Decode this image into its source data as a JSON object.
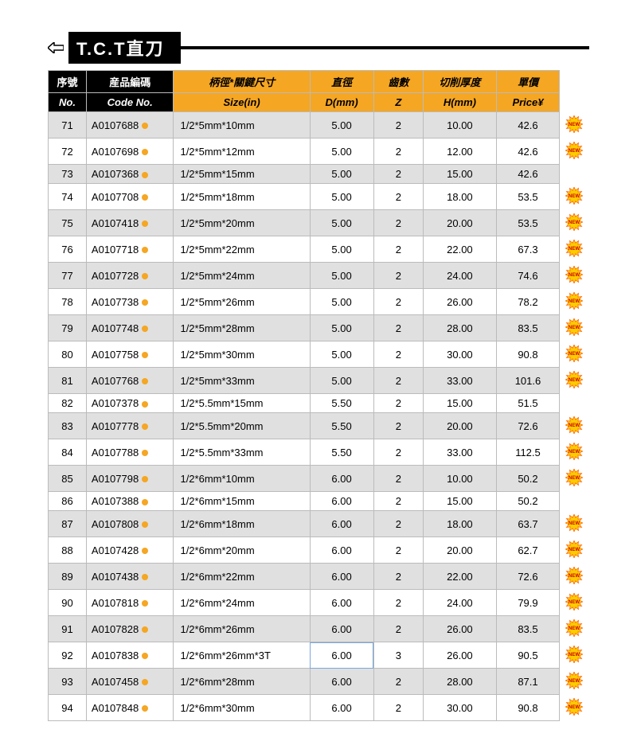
{
  "title": "T.C.T直刀",
  "headers_zh": [
    "序號",
    "産品編碼",
    "柄徑*關鍵尺寸",
    "直徑",
    "齒數",
    "切削厚度",
    "單價"
  ],
  "headers_en": [
    "No.",
    "Code No.",
    "Size(in)",
    "D(mm)",
    "Z",
    "H(mm)",
    "Price¥"
  ],
  "colors": {
    "header_black": "#000000",
    "header_yellow": "#f5a623",
    "row_alt": "#e0e0e0",
    "badge_fill": "#ffcc00",
    "badge_stroke": "#ff6600",
    "dot": "#f5a623"
  },
  "selected_cell": {
    "row_index": 21,
    "col": "d"
  },
  "rows": [
    {
      "no": "71",
      "code": "A0107688",
      "size": "1/2*5mm*10mm",
      "d": "5.00",
      "z": "2",
      "h": "10.00",
      "price": "42.6",
      "new": true
    },
    {
      "no": "72",
      "code": "A0107698",
      "size": "1/2*5mm*12mm",
      "d": "5.00",
      "z": "2",
      "h": "12.00",
      "price": "42.6",
      "new": true
    },
    {
      "no": "73",
      "code": "A0107368",
      "size": "1/2*5mm*15mm",
      "d": "5.00",
      "z": "2",
      "h": "15.00",
      "price": "42.6",
      "new": false
    },
    {
      "no": "74",
      "code": "A0107708",
      "size": "1/2*5mm*18mm",
      "d": "5.00",
      "z": "2",
      "h": "18.00",
      "price": "53.5",
      "new": true
    },
    {
      "no": "75",
      "code": "A0107418",
      "size": "1/2*5mm*20mm",
      "d": "5.00",
      "z": "2",
      "h": "20.00",
      "price": "53.5",
      "new": true
    },
    {
      "no": "76",
      "code": "A0107718",
      "size": "1/2*5mm*22mm",
      "d": "5.00",
      "z": "2",
      "h": "22.00",
      "price": "67.3",
      "new": true
    },
    {
      "no": "77",
      "code": "A0107728",
      "size": "1/2*5mm*24mm",
      "d": "5.00",
      "z": "2",
      "h": "24.00",
      "price": "74.6",
      "new": true
    },
    {
      "no": "78",
      "code": "A0107738",
      "size": "1/2*5mm*26mm",
      "d": "5.00",
      "z": "2",
      "h": "26.00",
      "price": "78.2",
      "new": true
    },
    {
      "no": "79",
      "code": "A0107748",
      "size": "1/2*5mm*28mm",
      "d": "5.00",
      "z": "2",
      "h": "28.00",
      "price": "83.5",
      "new": true
    },
    {
      "no": "80",
      "code": "A0107758",
      "size": "1/2*5mm*30mm",
      "d": "5.00",
      "z": "2",
      "h": "30.00",
      "price": "90.8",
      "new": true
    },
    {
      "no": "81",
      "code": "A0107768",
      "size": "1/2*5mm*33mm",
      "d": "5.00",
      "z": "2",
      "h": "33.00",
      "price": "101.6",
      "new": true
    },
    {
      "no": "82",
      "code": "A0107378",
      "size": "1/2*5.5mm*15mm",
      "d": "5.50",
      "z": "2",
      "h": "15.00",
      "price": "51.5",
      "new": false
    },
    {
      "no": "83",
      "code": "A0107778",
      "size": "1/2*5.5mm*20mm",
      "d": "5.50",
      "z": "2",
      "h": "20.00",
      "price": "72.6",
      "new": true
    },
    {
      "no": "84",
      "code": "A0107788",
      "size": "1/2*5.5mm*33mm",
      "d": "5.50",
      "z": "2",
      "h": "33.00",
      "price": "112.5",
      "new": true
    },
    {
      "no": "85",
      "code": "A0107798",
      "size": "1/2*6mm*10mm",
      "d": "6.00",
      "z": "2",
      "h": "10.00",
      "price": "50.2",
      "new": true
    },
    {
      "no": "86",
      "code": "A0107388",
      "size": "1/2*6mm*15mm",
      "d": "6.00",
      "z": "2",
      "h": "15.00",
      "price": "50.2",
      "new": false
    },
    {
      "no": "87",
      "code": "A0107808",
      "size": "1/2*6mm*18mm",
      "d": "6.00",
      "z": "2",
      "h": "18.00",
      "price": "63.7",
      "new": true
    },
    {
      "no": "88",
      "code": "A0107428",
      "size": "1/2*6mm*20mm",
      "d": "6.00",
      "z": "2",
      "h": "20.00",
      "price": "62.7",
      "new": true
    },
    {
      "no": "89",
      "code": "A0107438",
      "size": "1/2*6mm*22mm",
      "d": "6.00",
      "z": "2",
      "h": "22.00",
      "price": "72.6",
      "new": true
    },
    {
      "no": "90",
      "code": "A0107818",
      "size": "1/2*6mm*24mm",
      "d": "6.00",
      "z": "2",
      "h": "24.00",
      "price": "79.9",
      "new": true
    },
    {
      "no": "91",
      "code": "A0107828",
      "size": "1/2*6mm*26mm",
      "d": "6.00",
      "z": "2",
      "h": "26.00",
      "price": "83.5",
      "new": true
    },
    {
      "no": "92",
      "code": "A0107838",
      "size": "1/2*6mm*26mm*3T",
      "d": "6.00",
      "z": "3",
      "h": "26.00",
      "price": "90.5",
      "new": true
    },
    {
      "no": "93",
      "code": "A0107458",
      "size": "1/2*6mm*28mm",
      "d": "6.00",
      "z": "2",
      "h": "28.00",
      "price": "87.1",
      "new": true
    },
    {
      "no": "94",
      "code": "A0107848",
      "size": "1/2*6mm*30mm",
      "d": "6.00",
      "z": "2",
      "h": "30.00",
      "price": "90.8",
      "new": true
    }
  ]
}
